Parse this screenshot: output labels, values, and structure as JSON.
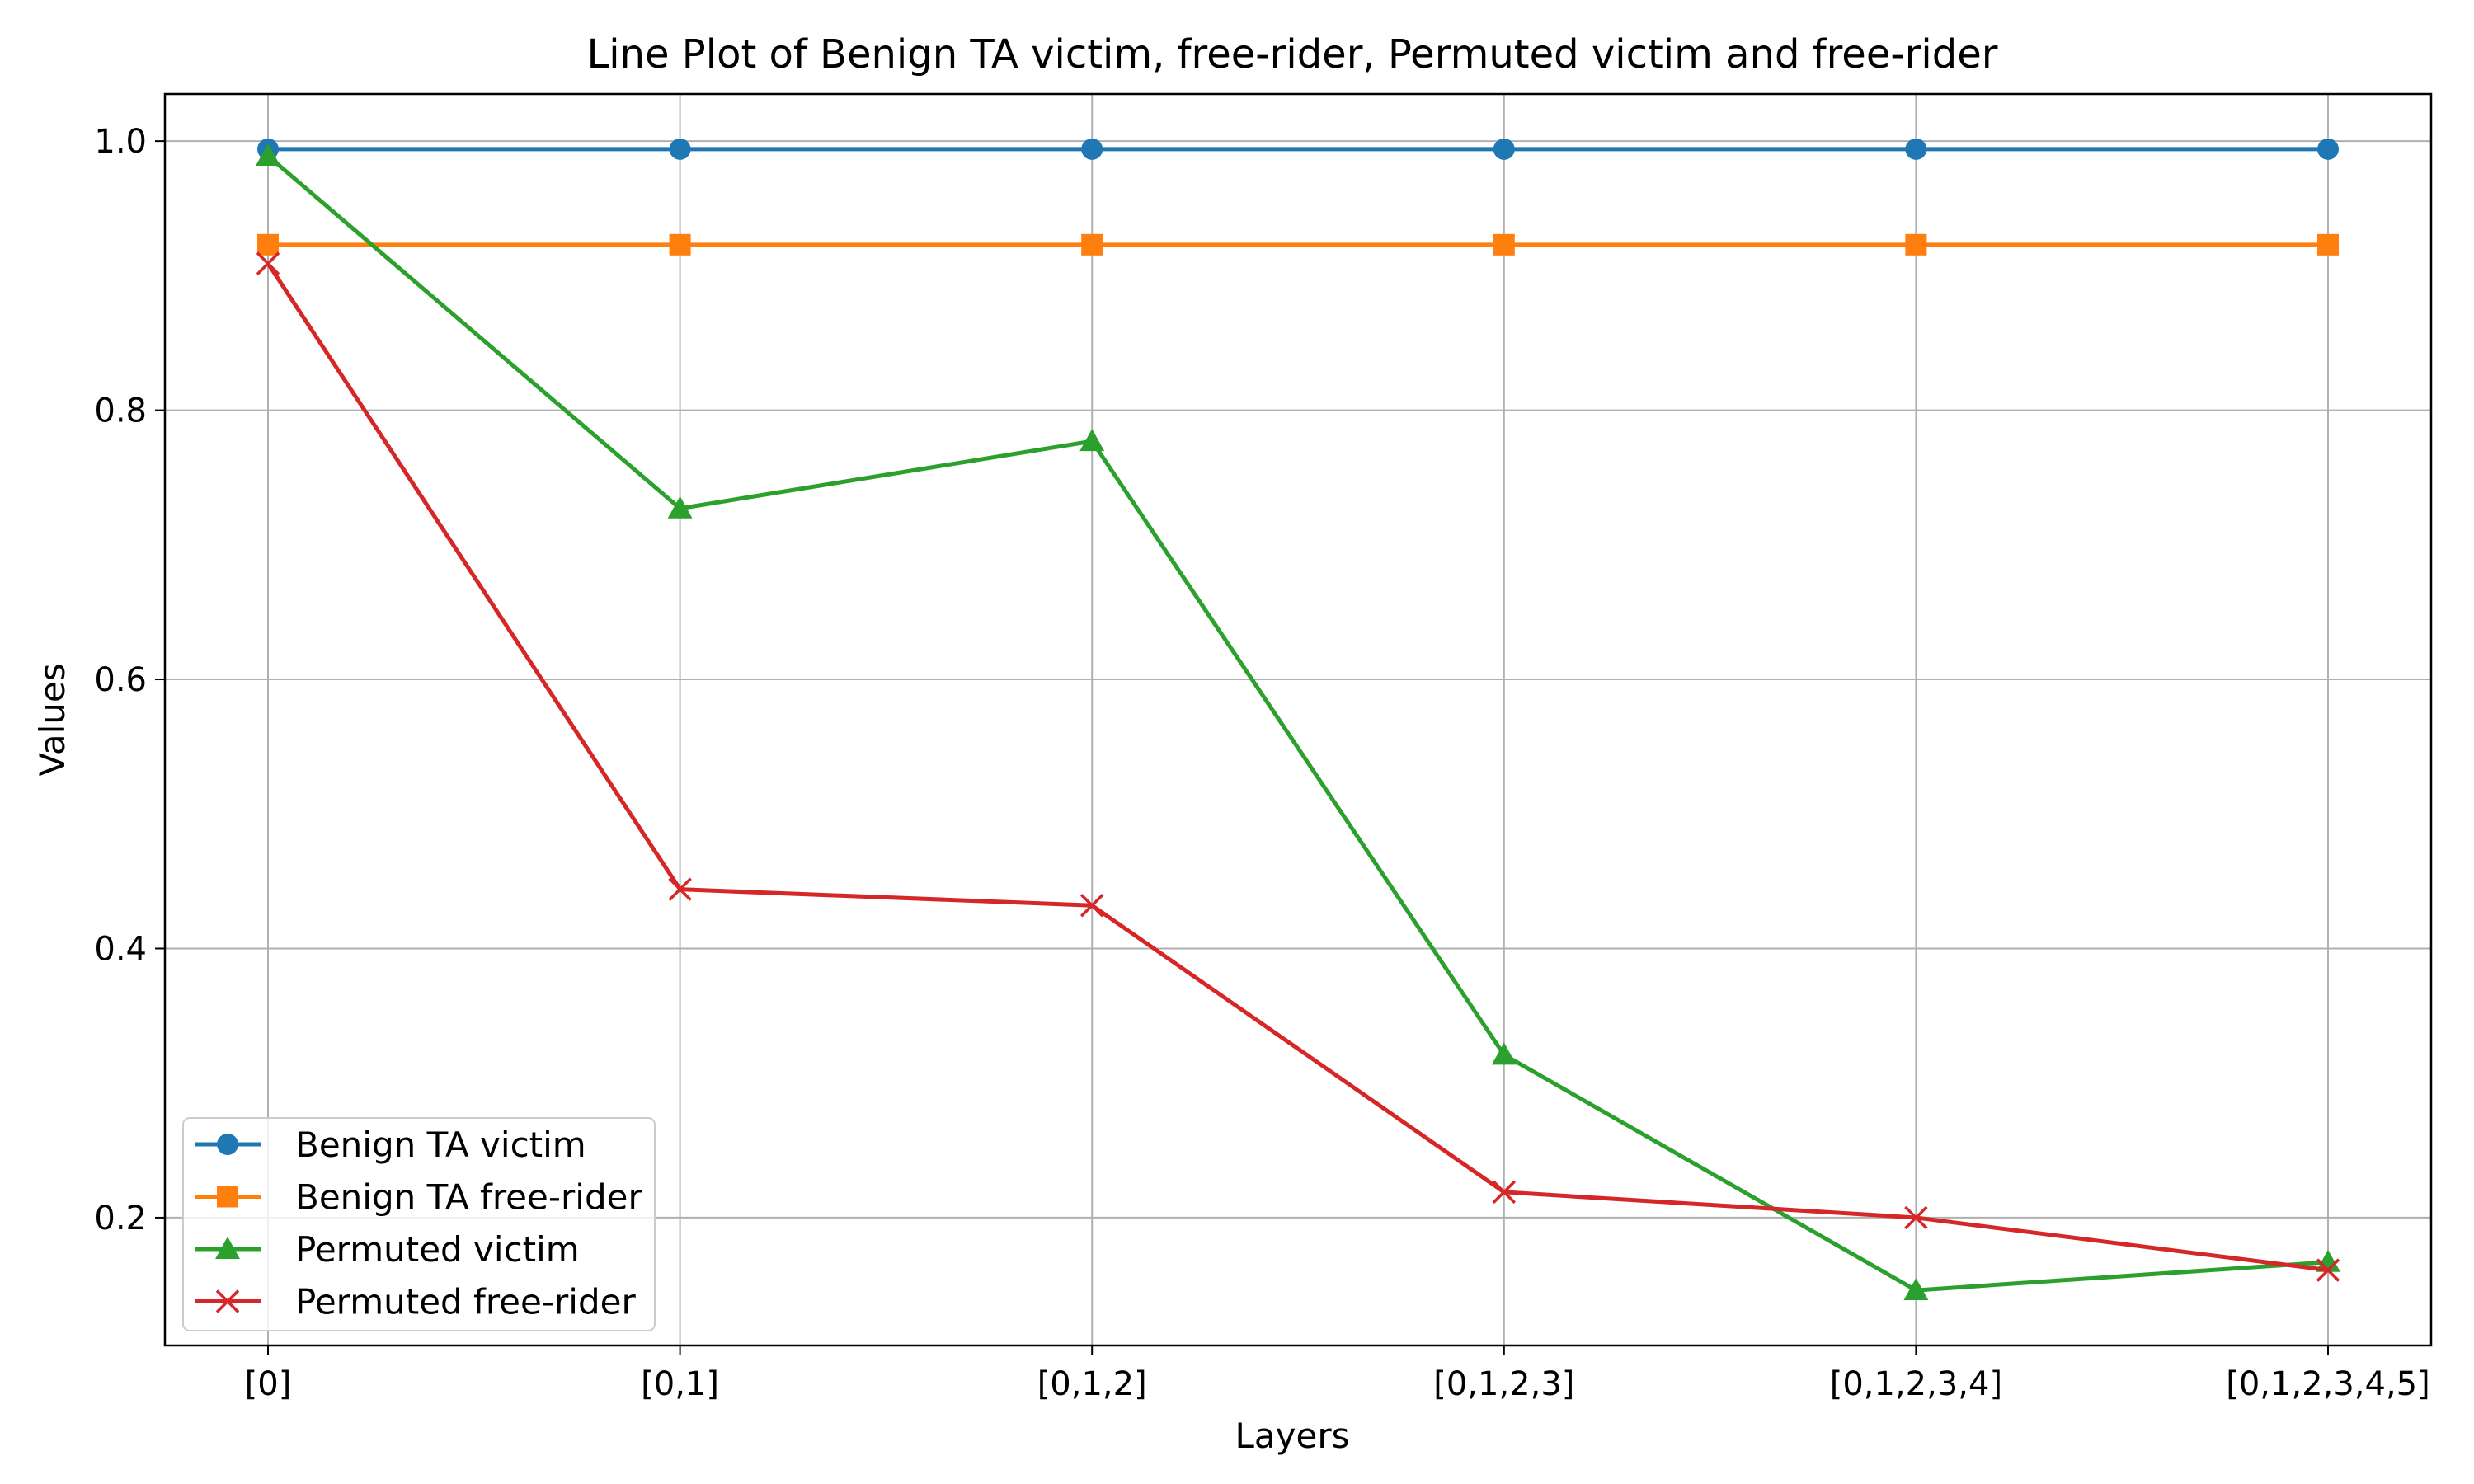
{
  "chart_data": {
    "type": "line",
    "title": "Line Plot of Benign TA victim, free-rider, Permuted victim and free-rider",
    "xlabel": "Layers",
    "ylabel": "Values",
    "categories": [
      "[0]",
      "[0,1]",
      "[0,1,2]",
      "[0,1,2,3]",
      "[0,1,2,3,4]",
      "[0,1,2,3,4,5]"
    ],
    "ylim": [
      0.105,
      1.035
    ],
    "yticks": [
      "0.2",
      "0.4",
      "0.6",
      "0.8",
      "1.0"
    ],
    "ytick_values": [
      0.2,
      0.4,
      0.6,
      0.8,
      1.0
    ],
    "grid": true,
    "legend_position": "lower-left",
    "series": [
      {
        "name": "Benign TA victim",
        "color": "#1f77b4",
        "marker": "circle",
        "values": [
          0.994,
          0.994,
          0.994,
          0.994,
          0.994,
          0.994
        ]
      },
      {
        "name": "Benign TA free-rider",
        "color": "#ff7f0e",
        "marker": "square",
        "values": [
          0.923,
          0.923,
          0.923,
          0.923,
          0.923,
          0.923
        ]
      },
      {
        "name": "Permuted victim",
        "color": "#2ca02c",
        "marker": "triangle",
        "values": [
          0.989,
          0.727,
          0.777,
          0.321,
          0.146,
          0.167
        ]
      },
      {
        "name": "Permuted free-rider",
        "color": "#d62728",
        "marker": "x",
        "values": [
          0.909,
          0.444,
          0.432,
          0.219,
          0.2,
          0.161
        ]
      }
    ]
  }
}
